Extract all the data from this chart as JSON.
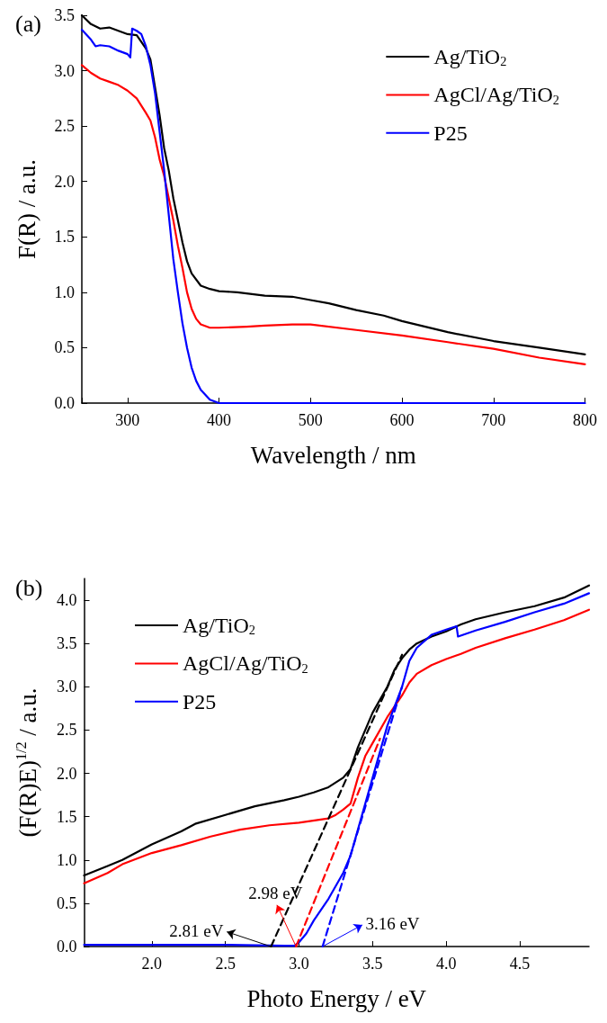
{
  "chart_data": [
    {
      "type": "line",
      "title": "(a)",
      "xlabel": "Wavelength / nm",
      "ylabel": "F(R) / a.u.",
      "xlim": [
        250,
        800
      ],
      "xticks": [
        {
          "value": 250,
          "label": null
        },
        300,
        400,
        500,
        600,
        700,
        800
      ],
      "ylim": [
        0,
        3.5
      ],
      "yticks": [
        {
          "value": 0,
          "label": "0.0"
        },
        0.5,
        {
          "value": 1,
          "label": "1.0"
        },
        1.5,
        {
          "value": 2,
          "label": "2.0"
        },
        2.5,
        {
          "value": 3,
          "label": "3.0"
        },
        3.5
      ],
      "grid": false,
      "legend": "top right",
      "marker": "none",
      "line_style": "solid",
      "series": [
        {
          "name": "Ag/TiO$_{2}$",
          "color": "#000000",
          "x": [
            250,
            260,
            270,
            280,
            290,
            300,
            310,
            320,
            325,
            330,
            335,
            340,
            345,
            350,
            355,
            360,
            365,
            370,
            380,
            390,
            400,
            420,
            450,
            480,
            500,
            520,
            550,
            580,
            600,
            650,
            700,
            750,
            800
          ],
          "values": [
            3.5,
            3.42,
            3.38,
            3.39,
            3.36,
            3.33,
            3.32,
            3.2,
            3.1,
            2.85,
            2.6,
            2.3,
            2.1,
            1.85,
            1.65,
            1.45,
            1.28,
            1.17,
            1.06,
            1.03,
            1.01,
            1.0,
            0.97,
            0.96,
            0.93,
            0.9,
            0.84,
            0.79,
            0.74,
            0.64,
            0.56,
            0.5,
            0.44
          ]
        },
        {
          "name": "AgCl/Ag/TiO$_{2}$",
          "color": "#ff0000",
          "x": [
            250,
            260,
            270,
            280,
            290,
            300,
            310,
            320,
            325,
            330,
            335,
            340,
            345,
            350,
            355,
            360,
            365,
            370,
            375,
            380,
            390,
            400,
            430,
            450,
            480,
            500,
            550,
            600,
            650,
            700,
            750,
            800
          ],
          "values": [
            3.05,
            2.98,
            2.93,
            2.9,
            2.87,
            2.82,
            2.75,
            2.62,
            2.55,
            2.4,
            2.2,
            2.05,
            1.85,
            1.65,
            1.42,
            1.22,
            1.0,
            0.85,
            0.76,
            0.71,
            0.68,
            0.68,
            0.69,
            0.7,
            0.71,
            0.71,
            0.66,
            0.61,
            0.55,
            0.49,
            0.41,
            0.35
          ]
        },
        {
          "name": "P25",
          "color": "#0000ff",
          "x": [
            250,
            260,
            265,
            270,
            280,
            290,
            300,
            303,
            305,
            310,
            315,
            320,
            325,
            330,
            335,
            340,
            345,
            350,
            355,
            360,
            365,
            370,
            375,
            380,
            390,
            400,
            500,
            600,
            700,
            800
          ],
          "values": [
            3.37,
            3.28,
            3.22,
            3.23,
            3.22,
            3.18,
            3.15,
            3.12,
            3.38,
            3.36,
            3.33,
            3.22,
            3.05,
            2.8,
            2.45,
            2.1,
            1.7,
            1.3,
            1.0,
            0.72,
            0.5,
            0.32,
            0.2,
            0.12,
            0.03,
            0.0,
            0.0,
            0.0,
            0.0,
            0.0
          ]
        }
      ]
    },
    {
      "type": "line",
      "title": "(b)",
      "xlabel": "Photo Energy / eV",
      "ylabel": "(F(R)E)$^{1/2}$ / a.u.",
      "xlim": [
        1.54,
        4.97
      ],
      "xticks": [
        {
          "value": 2,
          "label": "2.0"
        },
        2.5,
        {
          "value": 3,
          "label": "3.0"
        },
        3.5,
        {
          "value": 4,
          "label": "4.0"
        },
        4.5
      ],
      "ylim": [
        0,
        4.25
      ],
      "yticks": [
        {
          "value": 0,
          "label": "0.0"
        },
        0.5,
        {
          "value": 1,
          "label": "1.0"
        },
        1.5,
        {
          "value": 2,
          "label": "2.0"
        },
        2.5,
        {
          "value": 3,
          "label": "3.0"
        },
        3.5,
        {
          "value": 4,
          "label": "4.0"
        }
      ],
      "grid": false,
      "legend": "top left",
      "marker": "none",
      "line_style": "solid",
      "annotations": [
        {
          "text": "2.81 eV",
          "x": 2.81,
          "y": 0
        },
        {
          "text": "2.98 eV",
          "x": 2.98,
          "y": 0
        },
        {
          "text": "3.16 eV",
          "x": 3.16,
          "y": 0
        }
      ],
      "series": [
        {
          "name": "Ag/TiO$_{2}$",
          "color": "#000000",
          "x": [
            1.54,
            1.7,
            1.8,
            2.0,
            2.2,
            2.3,
            2.5,
            2.7,
            2.9,
            3.0,
            3.1,
            3.2,
            3.3,
            3.35,
            3.4,
            3.45,
            3.5,
            3.6,
            3.65,
            3.7,
            3.75,
            3.8,
            3.9,
            4.0,
            4.1,
            4.2,
            4.4,
            4.6,
            4.8,
            4.97
          ],
          "values": [
            0.82,
            0.93,
            1.0,
            1.18,
            1.33,
            1.42,
            1.52,
            1.62,
            1.69,
            1.73,
            1.78,
            1.84,
            1.95,
            2.05,
            2.3,
            2.5,
            2.7,
            3.0,
            3.2,
            3.33,
            3.43,
            3.5,
            3.58,
            3.64,
            3.72,
            3.78,
            3.86,
            3.93,
            4.03,
            4.17
          ]
        },
        {
          "name": "AgCl/Ag/TiO$_{2}$",
          "color": "#ff0000",
          "x": [
            1.54,
            1.7,
            1.8,
            2.0,
            2.2,
            2.4,
            2.6,
            2.8,
            3.0,
            3.2,
            3.25,
            3.3,
            3.35,
            3.4,
            3.45,
            3.5,
            3.6,
            3.7,
            3.75,
            3.8,
            3.9,
            4.0,
            4.1,
            4.2,
            4.4,
            4.6,
            4.8,
            4.97
          ],
          "values": [
            0.73,
            0.85,
            0.95,
            1.08,
            1.17,
            1.27,
            1.35,
            1.4,
            1.43,
            1.48,
            1.52,
            1.58,
            1.65,
            1.95,
            2.2,
            2.35,
            2.65,
            2.9,
            3.05,
            3.15,
            3.25,
            3.32,
            3.38,
            3.45,
            3.56,
            3.66,
            3.77,
            3.89
          ]
        },
        {
          "name": "P25",
          "color": "#0000ff",
          "x": [
            1.54,
            2.0,
            2.5,
            2.9,
            2.97,
            3.0,
            3.05,
            3.1,
            3.2,
            3.3,
            3.35,
            3.4,
            3.5,
            3.6,
            3.7,
            3.75,
            3.8,
            3.9,
            4.0,
            4.07,
            4.08,
            4.2,
            4.4,
            4.6,
            4.8,
            4.97
          ],
          "values": [
            0.02,
            0.02,
            0.02,
            0.01,
            0.01,
            0.05,
            0.15,
            0.3,
            0.55,
            0.85,
            1.05,
            1.35,
            1.95,
            2.55,
            3.0,
            3.3,
            3.45,
            3.6,
            3.66,
            3.7,
            3.58,
            3.65,
            3.75,
            3.86,
            3.96,
            4.08
          ]
        },
        {
          "type": "line",
          "line_style": "dashed",
          "color": "#000000",
          "x": [
            2.81,
            3.7
          ],
          "values": [
            0,
            3.37
          ]
        },
        {
          "type": "line",
          "line_style": "dashed",
          "color": "#ff0000",
          "x": [
            2.98,
            3.55
          ],
          "values": [
            0,
            2.4
          ]
        },
        {
          "type": "line",
          "line_style": "dashed",
          "color": "#0000ff",
          "x": [
            3.16,
            3.7
          ],
          "values": [
            0,
            3.0
          ]
        }
      ]
    }
  ]
}
